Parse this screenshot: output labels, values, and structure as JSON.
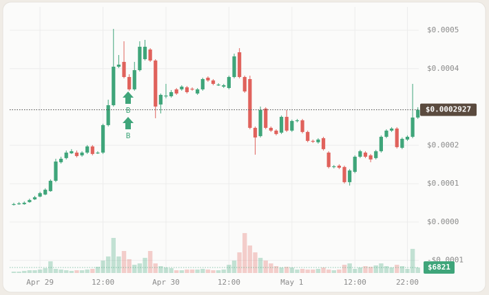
{
  "chart_data": {
    "type": "candlestick",
    "up_color": "#3fa57a",
    "down_color": "#e0625c",
    "grid": true,
    "ylim": [
      -0.000133,
      0.000561
    ],
    "yticks": [
      {
        "value": 0.0005,
        "label": "$0.0005"
      },
      {
        "value": 0.0004,
        "label": "$0.0004"
      },
      {
        "value": 0.0002,
        "label": "$0.0002"
      },
      {
        "value": 0.0001,
        "label": "$0.0001"
      },
      {
        "value": 0,
        "label": "$0.0000"
      },
      {
        "value": -0.0001,
        "label": "-$0.0001"
      }
    ],
    "y2lim": [
      0,
      330000
    ],
    "xticks": [
      {
        "value": 5,
        "label": "Apr 29"
      },
      {
        "value": 17,
        "label": "12:00"
      },
      {
        "value": 29,
        "label": "Apr 30"
      },
      {
        "value": 41,
        "label": "12:00"
      },
      {
        "value": 53,
        "label": "May 1"
      },
      {
        "value": 65,
        "label": "12:00"
      },
      {
        "value": 75,
        "label": "22:00"
      }
    ],
    "last_price": {
      "value": 0.0002927,
      "label": "$0.0002927"
    },
    "last_volume": {
      "value": 6821,
      "label": "$6821"
    },
    "annotations": [
      "B",
      "B"
    ],
    "open": [
      4.48e-05,
      4.66e-05,
      4.66e-05,
      5.2e-05,
      5.91e-05,
      6.63e-05,
      7.17e-05,
      8.06e-05,
      0.0001075,
      0.0001559,
      0.0001667,
      0.0001792,
      0.000181,
      0.0001738,
      0.000181,
      0.0001971,
      0.0001792,
      0.000181,
      0.0002527,
      0.0003046,
      0.000405,
      0.0004175,
      0.0003781,
      0.0003459,
      0.000396,
      0.0004247,
      0.0004498,
      0.0004211,
      0.0003064,
      0.0003279,
      0.0003279,
      0.0003459,
      0.0003459,
      0.0003512,
      0.0003476,
      0.0003351,
      0.0003459,
      0.0003763,
      0.0003692,
      0.0003584,
      0.000353,
      0.0003494,
      0.0003781,
      0.0004426,
      0.0003781,
      0.0003727,
      0.0002455,
      0.000224,
      0.0002957,
      0.0002455,
      0.0002383,
      0.000233,
      0.0002742,
      0.0002383,
      0.0002634,
      0.0002652,
      0.0002348,
      0.0002115,
      0.0002079,
      0.0002186,
      0.000181,
      0.0001434,
      0.0001469,
      0.0001434,
      0.0001039,
      0.0001308,
      0.0001702,
      0.000181,
      0.0001738,
      0.0001667,
      0.0001846,
      0.0002222,
      0.0002383,
      0.0002437,
      0.0001935,
      0.000215,
      0.0002222,
      0.0002724
    ],
    "high": [
      5.02e-05,
      5.2e-05,
      5.38e-05,
      6.09e-05,
      6.81e-05,
      7.88e-05,
      8.78e-05,
      0.0001111,
      0.0001649,
      0.0001702,
      0.0001864,
      0.00019,
      0.0001864,
      0.0001846,
      0.0002007,
      0.0002007,
      0.0001846,
      0.0002563,
      0.000319,
      0.0005036,
      0.0004355,
      0.0004713,
      0.0003853,
      0.0004175,
      0.0004713,
      0.0004749,
      0.0004534,
      0.0004247,
      0.0003351,
      0.0003602,
      0.0003441,
      0.0003494,
      0.0003566,
      0.0003548,
      0.0003512,
      0.0003494,
      0.0003763,
      0.0003799,
      0.0003727,
      0.000362,
      0.0003602,
      0.0003817,
      0.000439,
      0.0004534,
      0.0003817,
      0.0003817,
      0.0002491,
      0.0003011,
      0.0002993,
      0.0002491,
      0.0002419,
      0.0002778,
      0.0002921,
      0.000267,
      0.0002688,
      0.0002688,
      0.0002383,
      0.000215,
      0.0002186,
      0.0002222,
      0.0001846,
      0.0001487,
      0.0001505,
      0.0001469,
      0.000138,
      0.0001738,
      0.0001882,
      0.0001846,
      0.0001774,
      0.0001882,
      0.0002258,
      0.0002419,
      0.0002473,
      0.0002473,
      0.0002204,
      0.0002258,
      0.0003602,
      0.0002993
    ],
    "low": [
      4.3e-05,
      4.48e-05,
      4.48e-05,
      5.02e-05,
      5.73e-05,
      6.45e-05,
      6.99e-05,
      7.88e-05,
      0.0001039,
      0.0001523,
      0.0001631,
      0.0001774,
      0.0001684,
      0.0001702,
      0.0001774,
      0.0001738,
      0.0001774,
      0.0001774,
      0.0002491,
      0.0003011,
      0.0004014,
      0.0003745,
      0.0003423,
      0.0003423,
      0.0003924,
      0.0004211,
      0.0004175,
      0.0002706,
      0.0002831,
      0.0003226,
      0.0003244,
      0.0003315,
      0.0003423,
      0.0003351,
      0.0003423,
      0.0003315,
      0.0003423,
      0.0003656,
      0.0003566,
      0.0003548,
      0.0003494,
      0.0003459,
      0.0003745,
      0.0003745,
      0.0003369,
      0.0002419,
      0.0001756,
      0.0002204,
      0.0002419,
      0.0002348,
      0.0002258,
      0.0002294,
      0.0002348,
      0.0002348,
      0.0002598,
      0.0002312,
      0.0002079,
      0.0002061,
      0.0002043,
      0.0001864,
      0.0001398,
      0.0001398,
      0.000138,
      0.0001004,
      9.5e-05,
      0.0001272,
      0.0001667,
      0.0001667,
      0.0001559,
      0.0001631,
      0.000181,
      0.0002186,
      0.0002348,
      0.0001917,
      0.00019,
      0.0002115,
      0.0002186,
      0.0002688
    ],
    "close": [
      4.66e-05,
      4.84e-05,
      5.02e-05,
      5.73e-05,
      6.45e-05,
      7.53e-05,
      8.42e-05,
      0.0001075,
      0.0001577,
      0.0001649,
      0.000181,
      0.0001846,
      0.000172,
      0.000181,
      0.0001971,
      0.0001774,
      0.000181,
      0.0002527,
      0.0003046,
      0.000405,
      0.0004104,
      0.0003781,
      0.0003459,
      0.000396,
      0.000457,
      0.000457,
      0.0004211,
      0.0003011,
      0.0003315,
      0.0003297,
      0.0003387,
      0.0003351,
      0.000353,
      0.0003387,
      0.0003459,
      0.0003459,
      0.0003727,
      0.0003692,
      0.0003602,
      0.0003584,
      0.0003566,
      0.0003781,
      0.0004319,
      0.0003781,
      0.0003405,
      0.0002455,
      0.0002204,
      0.0002921,
      0.0002455,
      0.0002383,
      0.0002294,
      0.0002742,
      0.0002383,
      0.0002634,
      0.0002652,
      0.0002348,
      0.0002115,
      0.0002097,
      0.000215,
      0.00019,
      0.0001434,
      0.0001452,
      0.0001416,
      0.0001039,
      0.0001344,
      0.0001702,
      0.0001846,
      0.0001702,
      0.0001631,
      0.0001846,
      0.0002222,
      0.0002383,
      0.0002437,
      0.0001953,
      0.0002168,
      0.0002222,
      0.0002724,
      0.0002927
    ],
    "volume": [
      1700,
      1700,
      2600,
      3400,
      3400,
      4300,
      6000,
      14500,
      5100,
      4300,
      3400,
      2600,
      3400,
      3400,
      4300,
      5100,
      7700,
      15400,
      20500,
      43500,
      20500,
      27300,
      17100,
      10200,
      11900,
      18800,
      27300,
      11900,
      8500,
      6800,
      6000,
      3400,
      3400,
      4300,
      4300,
      4300,
      5100,
      4300,
      3400,
      3400,
      4300,
      10200,
      15400,
      25600,
      49500,
      34100,
      25600,
      18800,
      15400,
      11900,
      8500,
      6800,
      7700,
      6800,
      4300,
      5100,
      4300,
      4300,
      5100,
      6800,
      4300,
      3400,
      4300,
      10200,
      11900,
      5100,
      6800,
      8500,
      7700,
      9400,
      11900,
      8500,
      6800,
      10200,
      8500,
      5100,
      29900,
      6821
    ]
  }
}
